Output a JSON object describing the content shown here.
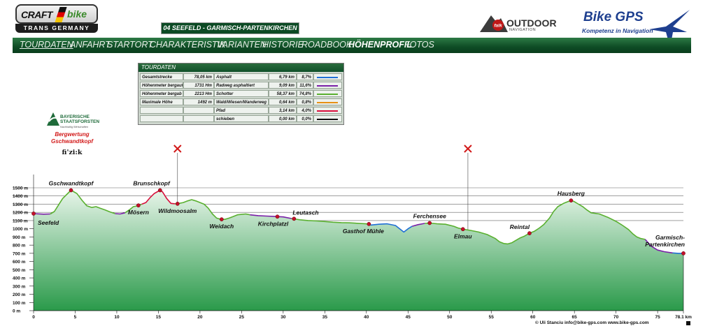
{
  "header": {
    "craft_word": "CRAFT",
    "craft_bike": "bike",
    "craft_sub": "TRANS GERMANY",
    "stage_title": "04 SEEFELD - GARMISCH-PARTENKIRCHEN",
    "outdoor_title": "OUTDOOR",
    "outdoor_sub": "NAVIGATION",
    "outdoor_badge": "falk",
    "bikegps_title": "Bike GPS",
    "bikegps_sub": "Kompetenz in Navigation"
  },
  "nav": {
    "items": [
      {
        "label": "TOURDATEN",
        "active": false,
        "underline": true
      },
      {
        "label": "ANFAHRT",
        "active": false
      },
      {
        "label": "STARTORT",
        "active": false
      },
      {
        "label": "CHARAKTERISTIK",
        "active": false
      },
      {
        "label": "VARIANTEN",
        "active": false
      },
      {
        "label": "HISTORIE",
        "active": false
      },
      {
        "label": "ROADBOOK",
        "active": false
      },
      {
        "label": "HÖHENPROFIL",
        "active": true
      },
      {
        "label": "FOTOS",
        "active": false
      }
    ]
  },
  "tour_table": {
    "title": "TOURDATEN",
    "left_rows": [
      {
        "label": "Gesamtstrecke",
        "value": "78,05 km"
      },
      {
        "label": "Höhenmeter bergauf",
        "value": "1731 Hm"
      },
      {
        "label": "Höhenmeter bergab",
        "value": "2213 Hm"
      },
      {
        "label": "Maximale Höhe",
        "value": "1492 m"
      },
      {
        "label": "",
        "value": ""
      },
      {
        "label": "",
        "value": ""
      }
    ],
    "surface_rows": [
      {
        "label": "Asphalt",
        "km": "6,79 km",
        "pct": "8,7%",
        "color": "#1f6fd6"
      },
      {
        "label": "Radweg asphaltiert",
        "km": "9,09 km",
        "pct": "11,6%",
        "color": "#7a1fa8"
      },
      {
        "label": "Schotter",
        "km": "58,37 km",
        "pct": "74,8%",
        "color": "#5ab030"
      },
      {
        "label": "Wald/Wiesen/Wanderweg",
        "km": "0,64 km",
        "pct": "0,8%",
        "color": "#e69014"
      },
      {
        "label": "Pfad",
        "km": "3,14 km",
        "pct": "4,0%",
        "color": "#d8103c"
      },
      {
        "label": "schieben",
        "km": "0,00 km",
        "pct": "0,0%",
        "color": "#111111"
      }
    ]
  },
  "sponsor": {
    "bayern_name_1": "BAYERISCHE",
    "bayern_name_2": "STAATSFORSTEN",
    "bayern_sub": "Nachhaltig Wirtschaften",
    "bergwertung_1": "Bergwertung",
    "bergwertung_2": "Gschwandtkopf",
    "fizik": "fi'zi:k"
  },
  "footer": {
    "copyright": "© Uli Stanciu   info@bike-gps.com   www.bike-gps.com"
  },
  "chart_data": {
    "type": "area",
    "xlabel": "",
    "ylabel": "",
    "xlim": [
      0,
      78.1
    ],
    "ylim": [
      0,
      1500
    ],
    "x_ticks": [
      "0",
      "5",
      "10",
      "15",
      "20",
      "25",
      "30",
      "35",
      "40",
      "45",
      "50",
      "55",
      "60",
      "65",
      "70",
      "75",
      "78.1 km"
    ],
    "x_tick_values": [
      0,
      5,
      10,
      15,
      20,
      25,
      30,
      35,
      40,
      45,
      50,
      55,
      60,
      65,
      70,
      75,
      78.1
    ],
    "y_ticks": [
      "0 m",
      "100 m",
      "200 m",
      "300 m",
      "400 m",
      "500 m",
      "600 m",
      "700 m",
      "800 m",
      "900 m",
      "1000 m",
      "1100 m",
      "1200 m",
      "1300 m",
      "1400 m",
      "1500 m"
    ],
    "y_tick_values": [
      0,
      100,
      200,
      300,
      400,
      500,
      600,
      700,
      800,
      900,
      1000,
      1100,
      1200,
      1300,
      1400,
      1500
    ],
    "grid_from": 1100,
    "colors": {
      "fill_top": "#e8f5ea",
      "fill_bottom": "#2a9a4a",
      "line": "#5ab030",
      "marker": "#c4102c",
      "grid": "#666666",
      "cross": "#d21919"
    },
    "series": [
      {
        "segments": [
          {
            "surface": "Radweg asphaltiert",
            "color": "#7a1fa8",
            "points": [
              [
                0,
                1185
              ],
              [
                1.2,
                1178
              ],
              [
                2,
                1180
              ]
            ]
          },
          {
            "surface": "Schotter",
            "color": "#5ab030",
            "points": [
              [
                2,
                1180
              ],
              [
                2.5,
                1210
              ],
              [
                3,
                1290
              ],
              [
                3.5,
                1370
              ],
              [
                4.2,
                1440
              ],
              [
                4.5,
                1470
              ],
              [
                5.2,
                1430
              ],
              [
                5.8,
                1350
              ],
              [
                6.4,
                1280
              ],
              [
                7,
                1260
              ],
              [
                7.5,
                1270
              ],
              [
                8,
                1250
              ],
              [
                8.6,
                1230
              ],
              [
                9.2,
                1205
              ],
              [
                9.8,
                1185
              ]
            ]
          },
          {
            "surface": "Radweg asphaltiert",
            "color": "#7a1fa8",
            "points": [
              [
                9.8,
                1185
              ],
              [
                10.4,
                1180
              ],
              [
                11,
                1195
              ]
            ]
          },
          {
            "surface": "Schotter",
            "color": "#5ab030",
            "points": [
              [
                11,
                1195
              ],
              [
                11.5,
                1230
              ],
              [
                12,
                1270
              ],
              [
                12.5,
                1280
              ],
              [
                13,
                1300
              ]
            ]
          },
          {
            "surface": "Pfad",
            "color": "#d8103c",
            "points": [
              [
                13,
                1300
              ],
              [
                13.5,
                1320
              ],
              [
                14,
                1380
              ],
              [
                14.5,
                1430
              ],
              [
                15.2,
                1470
              ],
              [
                15.5,
                1450
              ],
              [
                16,
                1370
              ],
              [
                16.5,
                1310
              ],
              [
                17,
                1305
              ]
            ]
          },
          {
            "surface": "Schotter",
            "color": "#5ab030",
            "points": [
              [
                17,
                1305
              ],
              [
                17.5,
                1310
              ],
              [
                18,
                1320
              ],
              [
                18.5,
                1340
              ],
              [
                19,
                1355
              ],
              [
                19.5,
                1340
              ],
              [
                20,
                1320
              ],
              [
                20.5,
                1300
              ],
              [
                21,
                1250
              ],
              [
                21.5,
                1180
              ],
              [
                22,
                1130
              ],
              [
                22.5,
                1115
              ],
              [
                23,
                1115
              ],
              [
                23.5,
                1130
              ],
              [
                24,
                1150
              ],
              [
                24.5,
                1170
              ],
              [
                25,
                1175
              ],
              [
                25.5,
                1180
              ],
              [
                26,
                1170
              ]
            ]
          },
          {
            "surface": "Radweg asphaltiert",
            "color": "#7a1fa8",
            "points": [
              [
                26,
                1170
              ],
              [
                27,
                1160
              ],
              [
                28,
                1155
              ],
              [
                29,
                1150
              ],
              [
                30,
                1145
              ],
              [
                31,
                1125
              ]
            ]
          },
          {
            "surface": "Schotter",
            "color": "#5ab030",
            "points": [
              [
                31,
                1125
              ],
              [
                32,
                1110
              ],
              [
                33,
                1100
              ],
              [
                34,
                1095
              ],
              [
                35,
                1088
              ],
              [
                36,
                1080
              ],
              [
                37,
                1075
              ],
              [
                38,
                1072
              ],
              [
                39,
                1066
              ],
              [
                40,
                1060
              ],
              [
                40.5,
                1045
              ]
            ]
          },
          {
            "surface": "Asphalt",
            "color": "#1f6fd6",
            "points": [
              [
                40.5,
                1045
              ],
              [
                41.5,
                1055
              ],
              [
                42.5,
                1060
              ],
              [
                43.5,
                1040
              ],
              [
                44,
                1000
              ],
              [
                44.5,
                960
              ],
              [
                45,
                1000
              ],
              [
                45.5,
                1030
              ]
            ]
          },
          {
            "surface": "Radweg asphaltiert",
            "color": "#7a1fa8",
            "points": [
              [
                45.5,
                1030
              ],
              [
                46.2,
                1050
              ],
              [
                47,
                1065
              ]
            ]
          },
          {
            "surface": "Schotter",
            "color": "#5ab030",
            "points": [
              [
                47,
                1065
              ],
              [
                47.6,
                1070
              ],
              [
                48.5,
                1060
              ],
              [
                49.5,
                1055
              ],
              [
                50.5,
                1030
              ],
              [
                51,
                1010
              ],
              [
                51.6,
                995
              ],
              [
                52.5,
                980
              ],
              [
                53.5,
                960
              ],
              [
                54.5,
                930
              ],
              [
                55.5,
                880
              ],
              [
                56,
                840
              ],
              [
                56.5,
                820
              ],
              [
                57,
                815
              ],
              [
                57.5,
                830
              ],
              [
                58,
                860
              ],
              [
                58.5,
                890
              ],
              [
                59,
                910
              ],
              [
                59.6,
                945
              ],
              [
                60.2,
                970
              ],
              [
                60.8,
                1010
              ],
              [
                61.3,
                1050
              ],
              [
                62,
                1130
              ],
              [
                62.5,
                1210
              ],
              [
                63,
                1270
              ],
              [
                63.7,
                1310
              ],
              [
                64.2,
                1330
              ],
              [
                64.6,
                1345
              ],
              [
                65,
                1330
              ],
              [
                65.5,
                1300
              ],
              [
                66,
                1270
              ],
              [
                66.5,
                1230
              ],
              [
                67,
                1195
              ],
              [
                68,
                1180
              ],
              [
                69,
                1140
              ],
              [
                70,
                1090
              ],
              [
                70.8,
                1040
              ],
              [
                71.5,
                990
              ],
              [
                72,
                940
              ],
              [
                72.5,
                900
              ],
              [
                73,
                880
              ],
              [
                73.5,
                870
              ]
            ]
          },
          {
            "surface": "Radweg asphaltiert",
            "color": "#7a1fa8",
            "points": [
              [
                73.5,
                870
              ],
              [
                74.2,
                790
              ],
              [
                75,
                740
              ],
              [
                75.8,
                720
              ],
              [
                76.8,
                705
              ]
            ]
          },
          {
            "surface": "Asphalt",
            "color": "#1f6fd6",
            "points": [
              [
                76.8,
                705
              ],
              [
                77.5,
                700
              ],
              [
                78.1,
                700
              ]
            ]
          }
        ]
      }
    ],
    "waypoints": [
      {
        "name": "Seefeld",
        "x": 0,
        "y": 1185,
        "label_side": "below-right"
      },
      {
        "name": "Gschwandtkopf",
        "x": 4.5,
        "y": 1470,
        "label_side": "above"
      },
      {
        "name": "Mösern",
        "x": 12.6,
        "y": 1285,
        "label_side": "below"
      },
      {
        "name": "Brunschkopf",
        "x": 15.2,
        "y": 1470,
        "label_side": "above-left"
      },
      {
        "name": "Wildmoosalm",
        "x": 17.3,
        "y": 1305,
        "label_side": "below"
      },
      {
        "name": "Weidach",
        "x": 22.6,
        "y": 1115,
        "label_side": "below"
      },
      {
        "name": "Kirchplatzl",
        "x": 29.3,
        "y": 1148,
        "label_side": "below-left"
      },
      {
        "name": "Leutasch",
        "x": 31.3,
        "y": 1122,
        "label_side": "above-right"
      },
      {
        "name": "Gasthof Mühle",
        "x": 40.3,
        "y": 1058,
        "label_side": "below-left"
      },
      {
        "name": "Ferchensee",
        "x": 47.6,
        "y": 1070,
        "label_side": "above"
      },
      {
        "name": "Elmau",
        "x": 51.6,
        "y": 995,
        "label_side": "below"
      },
      {
        "name": "Reintal",
        "x": 59.6,
        "y": 945,
        "label_side": "above-left"
      },
      {
        "name": "Hausberg",
        "x": 64.6,
        "y": 1345,
        "label_side": "above-left"
      },
      {
        "name": "Garmisch-\nPartenkirchen",
        "x": 78.1,
        "y": 700,
        "label_side": "above-left"
      }
    ],
    "crosses": [
      {
        "x": 17.3,
        "y": 1305
      },
      {
        "x": 52.2,
        "y": 990
      }
    ]
  }
}
